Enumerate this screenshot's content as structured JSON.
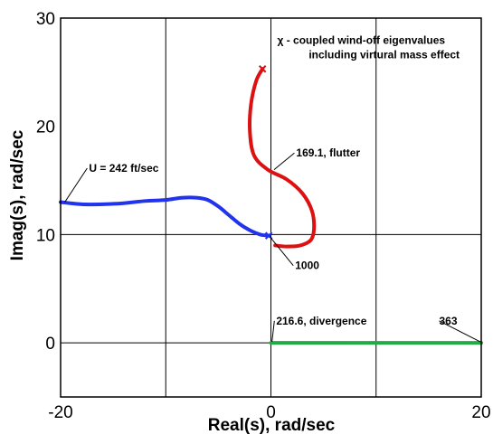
{
  "chart_data": {
    "type": "line",
    "xlabel": "Real(s), rad/sec",
    "ylabel": "Imag(s), rad/sec",
    "xlim": [
      -20,
      20
    ],
    "ylim": [
      -5,
      30
    ],
    "xticks": [
      "-20",
      "0",
      "20"
    ],
    "xtick_values": [
      -20,
      0,
      20
    ],
    "yticks": [
      "0",
      "10",
      "20",
      "30"
    ],
    "ytick_values": [
      0,
      10,
      20,
      30
    ],
    "gridlines_x": [
      -10,
      0,
      10
    ],
    "gridlines_y": [
      0,
      10
    ],
    "series": [
      {
        "color": "#2233ee",
        "x": [
          -20,
          -18,
          -16,
          -14,
          -12,
          -10,
          -8.5,
          -7,
          -6,
          -5,
          -4,
          -3,
          -2,
          -1,
          -0.2
        ],
        "y": [
          13.0,
          12.8,
          12.8,
          12.9,
          13.1,
          13.2,
          13.4,
          13.4,
          13.2,
          12.6,
          11.8,
          11.0,
          10.4,
          10.0,
          9.9
        ]
      },
      {
        "color": "#dd1111",
        "x": [
          -0.8,
          -1.4,
          -1.9,
          -2.0,
          -1.6,
          -0.3,
          1.5,
          3.0,
          3.9,
          4.1,
          3.8,
          2.8,
          1.5,
          0.4
        ],
        "y": [
          25.3,
          24.2,
          22.0,
          19.5,
          17.3,
          16.0,
          15.1,
          13.8,
          12.2,
          10.6,
          9.5,
          9.0,
          8.9,
          9.0
        ]
      },
      {
        "color": "#22aa44",
        "x": [
          0,
          20
        ],
        "y": [
          0,
          0
        ]
      }
    ],
    "markers": [
      {
        "x": -0.8,
        "y": 25.3,
        "color": "#dd1111"
      },
      {
        "x": -0.2,
        "y": 9.9,
        "color": "#2233ee"
      }
    ],
    "annotations": [
      {
        "label": "χ - coupled wind-off eigenvalues",
        "x": 0.6,
        "y": 27.6
      },
      {
        "label": "including virtural mass effect",
        "x": 3.6,
        "y": 26.3
      },
      {
        "label": "169.1, flutter",
        "x": 2.4,
        "y": 17.2,
        "px": 0.3,
        "py": 16.0
      },
      {
        "label": "U = 242 ft/sec",
        "x": -17.3,
        "y": 15.8,
        "px": -19.6,
        "py": 13.0
      },
      {
        "label": "1000",
        "x": 2.3,
        "y": 6.8,
        "px": -0.1,
        "py": 9.8
      },
      {
        "label": "216.6, divergence",
        "x": 0.5,
        "y": 1.7,
        "px": 0.1,
        "py": 0.1
      },
      {
        "label": "363",
        "x": 16.0,
        "y": 1.7,
        "px": 19.9,
        "py": 0.1
      }
    ]
  }
}
